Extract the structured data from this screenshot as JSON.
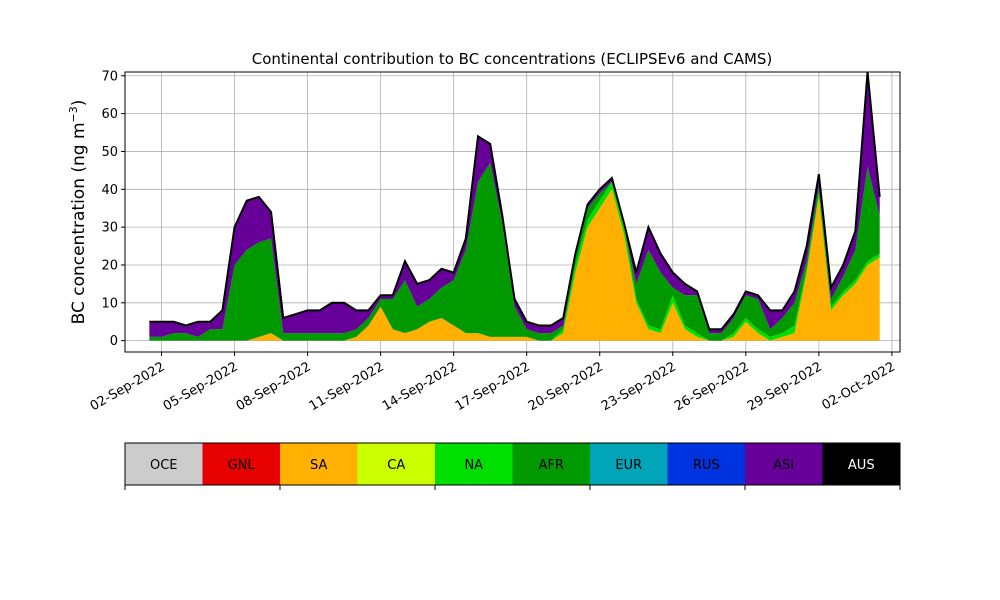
{
  "chart_data": {
    "type": "area",
    "stacked": true,
    "title": "Continental contribution to BC concentrations (ECLIPSEv6 and CAMS)",
    "ylabel": "BC concentration (ng m",
    "ylabel_superscript": "−3",
    "ylabel_suffix": ")",
    "ylim": [
      -3,
      71
    ],
    "yticks": [
      0,
      10,
      20,
      30,
      40,
      50,
      60,
      70
    ],
    "xlim": [
      "2022-08-31T12:00",
      "2022-10-02T08:00"
    ],
    "xticks": [
      "2022-09-02",
      "2022-09-05",
      "2022-09-08",
      "2022-09-11",
      "2022-09-14",
      "2022-09-17",
      "2022-09-20",
      "2022-09-23",
      "2022-09-26",
      "2022-09-29",
      "2022-10-02"
    ],
    "xtick_labels": [
      "02-Sep-2022",
      "05-Sep-2022",
      "08-Sep-2022",
      "11-Sep-2022",
      "14-Sep-2022",
      "17-Sep-2022",
      "20-Sep-2022",
      "23-Sep-2022",
      "26-Sep-2022",
      "29-Sep-2022",
      "02-Oct-2022"
    ],
    "grid": true,
    "stack_order": [
      "SA",
      "NA",
      "AFR",
      "ASI"
    ],
    "total_outline_color": "#000000",
    "series_colors": {
      "SA": "#ffb000",
      "NA": "#00e000",
      "AFR": "#009a00",
      "ASI": "#660099"
    },
    "x": [
      "2022-09-01T12:00",
      "2022-09-02T00:00",
      "2022-09-02T12:00",
      "2022-09-03T00:00",
      "2022-09-03T12:00",
      "2022-09-04T00:00",
      "2022-09-04T12:00",
      "2022-09-05T00:00",
      "2022-09-05T12:00",
      "2022-09-06T00:00",
      "2022-09-06T12:00",
      "2022-09-07T00:00",
      "2022-09-07T12:00",
      "2022-09-08T00:00",
      "2022-09-08T12:00",
      "2022-09-09T00:00",
      "2022-09-09T12:00",
      "2022-09-10T00:00",
      "2022-09-10T12:00",
      "2022-09-11T00:00",
      "2022-09-11T12:00",
      "2022-09-12T00:00",
      "2022-09-12T12:00",
      "2022-09-13T00:00",
      "2022-09-13T12:00",
      "2022-09-14T00:00",
      "2022-09-14T12:00",
      "2022-09-15T00:00",
      "2022-09-15T12:00",
      "2022-09-16T00:00",
      "2022-09-16T12:00",
      "2022-09-17T00:00",
      "2022-09-17T12:00",
      "2022-09-18T00:00",
      "2022-09-18T12:00",
      "2022-09-19T00:00",
      "2022-09-19T12:00",
      "2022-09-20T00:00",
      "2022-09-20T12:00",
      "2022-09-21T00:00",
      "2022-09-21T12:00",
      "2022-09-22T00:00",
      "2022-09-22T12:00",
      "2022-09-23T00:00",
      "2022-09-23T12:00",
      "2022-09-24T00:00",
      "2022-09-24T12:00",
      "2022-09-25T00:00",
      "2022-09-25T12:00",
      "2022-09-26T00:00",
      "2022-09-26T12:00",
      "2022-09-27T00:00",
      "2022-09-27T12:00",
      "2022-09-28T00:00",
      "2022-09-28T12:00",
      "2022-09-29T00:00",
      "2022-09-29T12:00",
      "2022-09-30T00:00",
      "2022-09-30T12:00",
      "2022-10-01T00:00",
      "2022-10-01T12:00"
    ],
    "series": [
      {
        "name": "SA",
        "values": [
          0,
          0,
          0,
          0,
          0,
          0,
          0,
          0,
          0,
          1,
          2,
          0,
          0,
          0,
          0,
          0,
          0,
          1,
          4,
          9,
          3,
          2,
          3,
          5,
          6,
          4,
          2,
          2,
          1,
          1,
          1,
          1,
          0,
          0,
          2,
          18,
          30,
          35,
          40,
          28,
          10,
          3,
          2,
          10,
          3,
          1,
          0,
          0,
          1,
          5,
          2,
          0,
          1,
          2,
          18,
          38,
          8,
          12,
          15,
          20,
          22
        ]
      },
      {
        "name": "NA",
        "values": [
          0,
          0,
          0,
          0,
          0,
          0,
          0,
          0,
          0,
          0,
          0,
          0,
          0,
          0,
          0,
          0,
          0,
          0,
          0,
          0,
          0,
          0,
          0,
          0,
          0,
          0,
          0,
          0,
          0,
          0,
          0,
          0,
          0,
          0,
          1,
          2,
          2,
          2,
          2,
          2,
          1,
          1,
          1,
          2,
          1,
          1,
          0,
          0,
          1,
          1,
          1,
          1,
          1,
          2,
          1,
          1,
          1,
          1,
          1,
          1,
          1
        ]
      },
      {
        "name": "AFR",
        "values": [
          1,
          1,
          2,
          2,
          1,
          3,
          3,
          20,
          24,
          25,
          25,
          2,
          2,
          2,
          2,
          2,
          2,
          2,
          2,
          2,
          8,
          14,
          6,
          6,
          8,
          12,
          22,
          40,
          46,
          30,
          8,
          2,
          2,
          2,
          1,
          2,
          3,
          2,
          0,
          0,
          4,
          20,
          15,
          2,
          8,
          10,
          2,
          2,
          4,
          6,
          8,
          2,
          4,
          6,
          2,
          2,
          2,
          4,
          8,
          25,
          10
        ]
      },
      {
        "name": "ASI",
        "values": [
          4,
          4,
          3,
          2,
          4,
          2,
          5,
          10,
          13,
          12,
          7,
          4,
          5,
          6,
          6,
          8,
          8,
          5,
          2,
          1,
          1,
          5,
          6,
          5,
          5,
          2,
          3,
          12,
          5,
          2,
          2,
          2,
          2,
          2,
          2,
          1,
          1,
          1,
          1,
          1,
          3,
          6,
          5,
          4,
          3,
          1,
          1,
          1,
          1,
          1,
          1,
          5,
          2,
          3,
          4,
          3,
          3,
          3,
          5,
          25,
          5
        ]
      }
    ]
  },
  "legend": {
    "items": [
      {
        "label": "OCE",
        "color": "#cccccc",
        "text_color": "#000000"
      },
      {
        "label": "GNL",
        "color": "#e60000",
        "text_color": "#000000"
      },
      {
        "label": "SA",
        "color": "#ffb000",
        "text_color": "#000000"
      },
      {
        "label": "CA",
        "color": "#ccff00",
        "text_color": "#000000"
      },
      {
        "label": "NA",
        "color": "#00e000",
        "text_color": "#000000"
      },
      {
        "label": "AFR",
        "color": "#009a00",
        "text_color": "#000000"
      },
      {
        "label": "EUR",
        "color": "#00a6b8",
        "text_color": "#000000"
      },
      {
        "label": "RUS",
        "color": "#0033e0",
        "text_color": "#000000"
      },
      {
        "label": "ASI",
        "color": "#660099",
        "text_color": "#000000"
      },
      {
        "label": "AUS",
        "color": "#000000",
        "text_color": "#ffffff"
      }
    ]
  }
}
